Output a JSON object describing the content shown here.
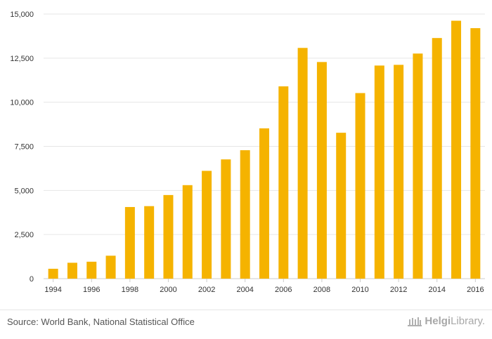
{
  "chart_data": {
    "type": "bar",
    "title": "",
    "xlabel": "",
    "ylabel": "",
    "ylim": [
      0,
      15000
    ],
    "yticks": [
      0,
      2500,
      5000,
      7500,
      10000,
      12500,
      15000
    ],
    "ytick_labels": [
      "0",
      "2,500",
      "5,000",
      "7,500",
      "10,000",
      "12,500",
      "15,000"
    ],
    "categories": [
      "1994",
      "1995",
      "1996",
      "1997",
      "1998",
      "1999",
      "2000",
      "2001",
      "2002",
      "2003",
      "2004",
      "2005",
      "2006",
      "2007",
      "2008",
      "2009",
      "2010",
      "2011",
      "2012",
      "2013",
      "2014",
      "2015",
      "2016"
    ],
    "xtick_labels": [
      "1994",
      "1996",
      "1998",
      "2000",
      "2002",
      "2004",
      "2006",
      "2008",
      "2010",
      "2012",
      "2014",
      "2016"
    ],
    "values": [
      560,
      900,
      960,
      1300,
      4060,
      4110,
      4740,
      5300,
      6110,
      6760,
      7280,
      8520,
      10900,
      13080,
      12280,
      8270,
      10520,
      12080,
      12120,
      12760,
      13640,
      14620,
      14200
    ],
    "bar_color": "#f5b300",
    "grid": true,
    "legend": "none"
  },
  "footer": {
    "source": "Source: World Bank, National Statistical Office",
    "brand_bold": "Helgi",
    "brand_light": "Library."
  },
  "colors": {
    "grid": "#e6e6e6",
    "tick_text": "#333333",
    "brand": "#a8a8a8"
  }
}
